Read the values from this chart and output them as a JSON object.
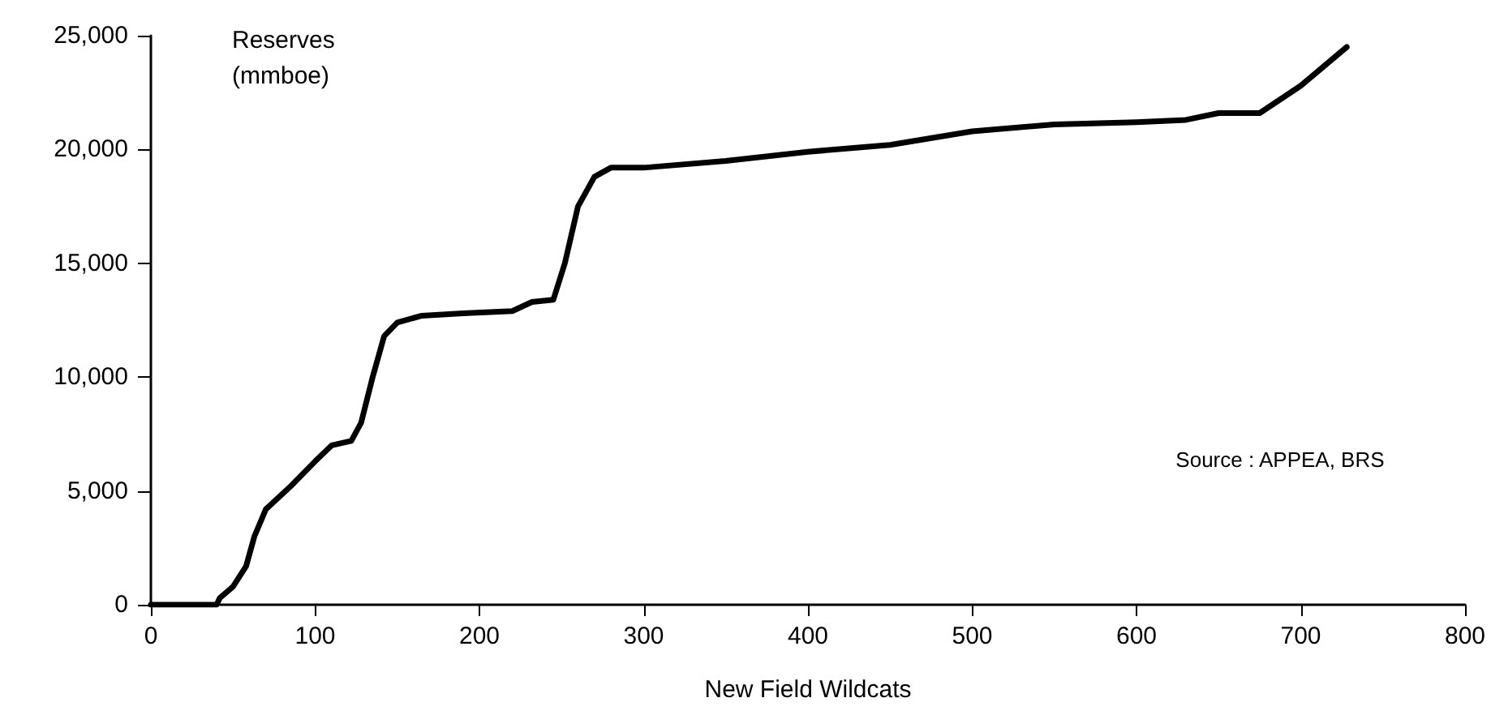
{
  "chart_data": {
    "type": "line",
    "xlabel": "New Field Wildcats",
    "ylabel": "Reserves\n(mmboe)",
    "annotations": [
      "Source : APPEA, BRS"
    ],
    "x": [
      0,
      30,
      40,
      42,
      50,
      58,
      63,
      70,
      85,
      100,
      110,
      122,
      128,
      135,
      142,
      150,
      165,
      190,
      220,
      232,
      245,
      252,
      260,
      270,
      280,
      300,
      350,
      400,
      450,
      500,
      550,
      600,
      630,
      650,
      675,
      700,
      728
    ],
    "series": [
      {
        "color": "#000000",
        "values": [
          0,
          0,
          0,
          300,
          800,
          1700,
          3000,
          4200,
          5200,
          6300,
          7000,
          7200,
          8000,
          10000,
          11800,
          12400,
          12700,
          12800,
          12900,
          13300,
          13400,
          15000,
          17500,
          18800,
          19200,
          19200,
          19500,
          19900,
          20200,
          20800,
          21100,
          21200,
          21300,
          21600,
          21600,
          22800,
          24500
        ]
      }
    ],
    "xlim": [
      0,
      800
    ],
    "xticks": [
      0,
      100,
      200,
      300,
      400,
      500,
      600,
      700,
      800
    ],
    "ylim": [
      0,
      25000
    ],
    "yticks": [
      0,
      {
        "value": 5000,
        "label": "5,000"
      },
      {
        "value": 10000,
        "label": "10,000"
      },
      {
        "value": 15000,
        "label": "15,000"
      },
      {
        "value": 20000,
        "label": "20,000"
      },
      {
        "value": 25000,
        "label": "25,000"
      }
    ],
    "grid": false,
    "marker": "none",
    "line_style": "solid"
  }
}
